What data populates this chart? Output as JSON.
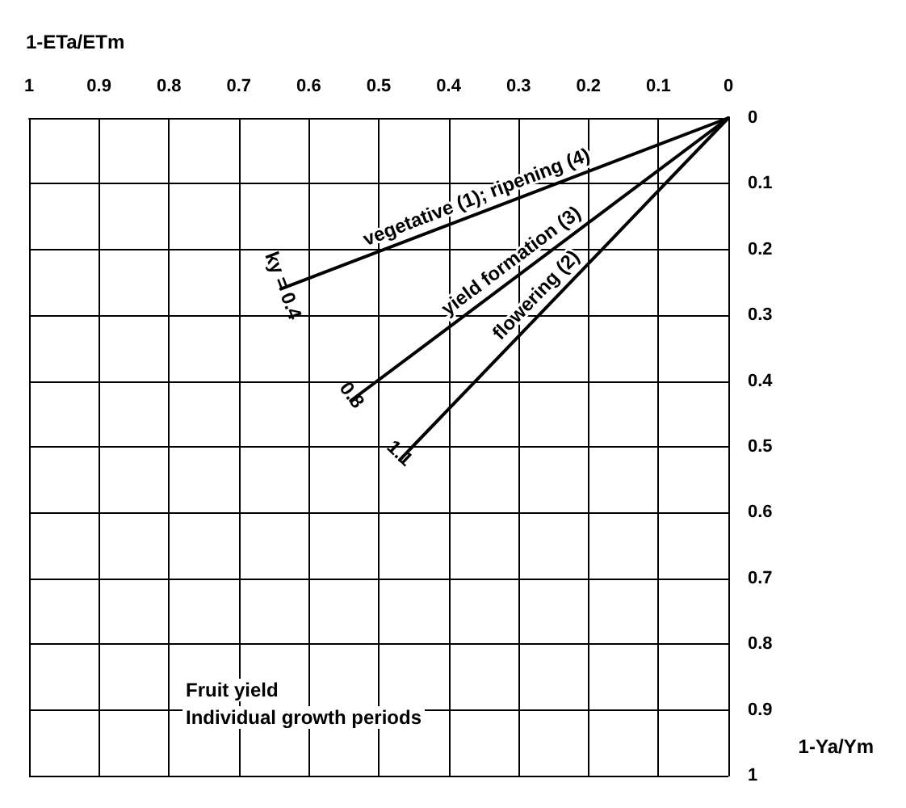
{
  "chart_data": {
    "type": "line",
    "xlabel": "1-ETa/ETm",
    "ylabel": "1-Ya/Ym",
    "xlim": [
      1,
      0
    ],
    "xticks": [
      1,
      0.9,
      0.8,
      0.7,
      0.6,
      0.5,
      0.4,
      0.3,
      0.2,
      0.1,
      0
    ],
    "ylim": [
      1,
      0
    ],
    "yticks": [
      0,
      0.1,
      0.2,
      0.3,
      0.4,
      0.5,
      0.6,
      0.7,
      0.8,
      0.9,
      1
    ],
    "grid": true,
    "legend": false,
    "marker": "none",
    "line_style": "solid",
    "series": [
      {
        "name": "vegetative (1); ripening (4)",
        "color": "#000000",
        "x": [
          0,
          0.64
        ],
        "values": [
          0,
          0.26
        ]
      },
      {
        "name": "yield formation (3)",
        "color": "#000000",
        "x": [
          0,
          0.54
        ],
        "values": [
          0,
          0.43
        ]
      },
      {
        "name": "flowering (2)",
        "color": "#000000",
        "x": [
          0,
          0.47
        ],
        "values": [
          0,
          0.52
        ]
      }
    ],
    "annotations": [
      {
        "text": "ky = 0.4",
        "x": 0.64,
        "y": 0.26
      },
      {
        "text": "0.8",
        "x": 0.54,
        "y": 0.43
      },
      {
        "text": "1.1",
        "x": 0.47,
        "y": 0.52
      },
      "Fruit yield",
      "Individual growth periods"
    ]
  }
}
